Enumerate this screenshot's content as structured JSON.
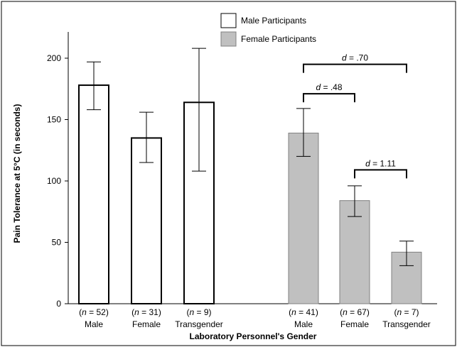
{
  "chart_data": {
    "type": "bar",
    "title": "",
    "ylabel": "Pain Tolerance at 5°C (in seconds)",
    "xlabel": "Laboratory Personnel's Gender",
    "ylim": [
      0,
      220
    ],
    "yticks": [
      0,
      50,
      100,
      150,
      200
    ],
    "grid": false,
    "legend_position": "top-center",
    "series": [
      {
        "name": "Male Participants",
        "color": "#ffffff",
        "stroke": "#000000",
        "categories": [
          "Male",
          "Female",
          "Transgender"
        ],
        "n_labels": [
          "52",
          "31",
          "9"
        ],
        "values": [
          178,
          135,
          164
        ],
        "err_low": [
          158,
          115,
          108
        ],
        "err_high": [
          197,
          156,
          208
        ]
      },
      {
        "name": "Female Participants",
        "color": "#c0c0c0",
        "stroke": "#808080",
        "categories": [
          "Male",
          "Female",
          "Transgender"
        ],
        "n_labels": [
          "41",
          "67",
          "7"
        ],
        "values": [
          139,
          84,
          42
        ],
        "err_low": [
          120,
          71,
          31
        ],
        "err_high": [
          159,
          96,
          51
        ]
      }
    ],
    "annotations": [
      {
        "series": 1,
        "from": 0,
        "to": 2,
        "value": ".70",
        "level": 195
      },
      {
        "series": 1,
        "from": 0,
        "to": 1,
        "value": ".48",
        "level": 171
      },
      {
        "series": 1,
        "from": 1,
        "to": 2,
        "value": "1.11",
        "level": 109
      }
    ],
    "n_prefix": "n",
    "d_prefix": "d"
  }
}
